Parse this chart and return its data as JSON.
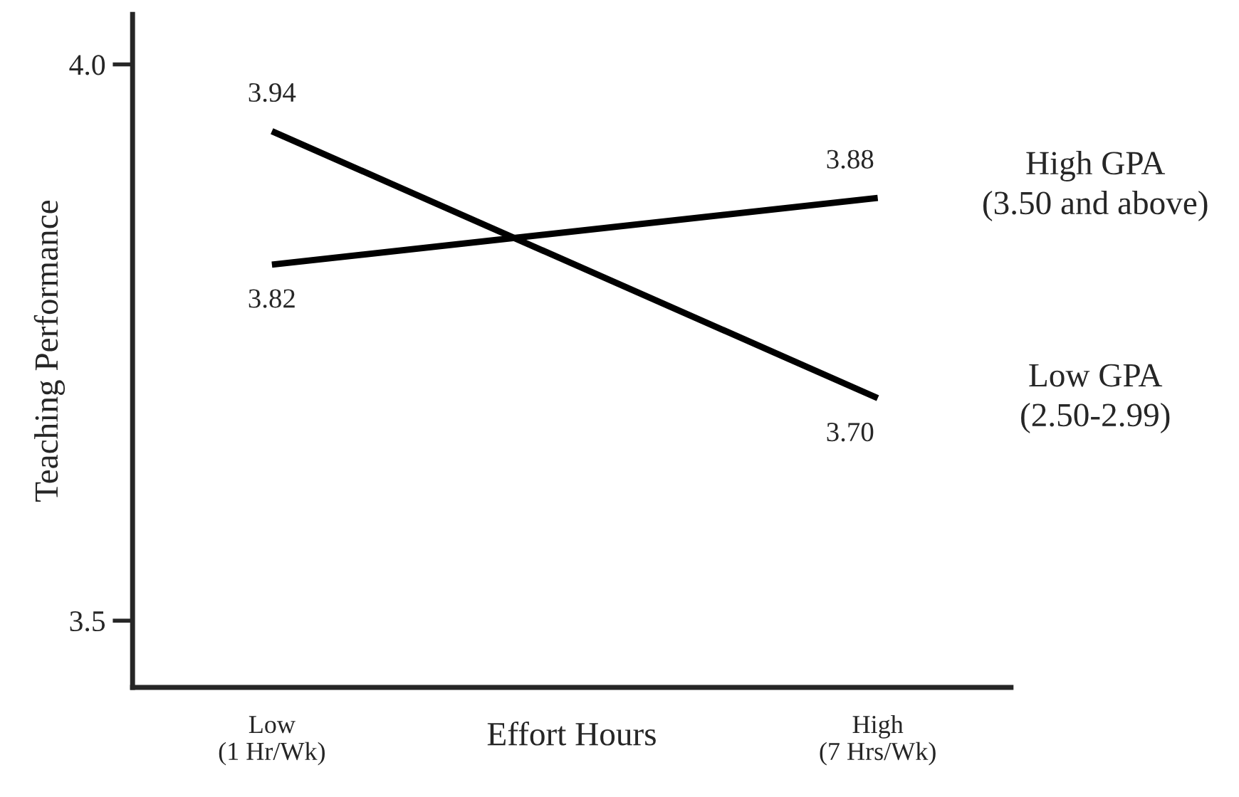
{
  "chart_data": {
    "type": "line",
    "xlabel": "Effort Hours",
    "ylabel": "Teaching Performance",
    "categories": [
      "Low\n(1 Hr/Wk)",
      "High\n(7 Hrs/Wk)"
    ],
    "series": [
      {
        "name": "High GPA\n(3.50 and above)",
        "color": "#000000",
        "values": [
          3.82,
          3.88
        ],
        "value_labels": [
          "3.82",
          "3.88"
        ]
      },
      {
        "name": "Low GPA\n(2.50-2.99)",
        "color": "#000000",
        "values": [
          3.94,
          3.7
        ],
        "value_labels": [
          "3.94",
          "3.70"
        ]
      }
    ],
    "ylim": [
      3.44,
      4.045
    ],
    "yticks": [
      3.5,
      {
        "value": 4.0,
        "label": "4.0"
      }
    ],
    "grid": false,
    "legend": false,
    "marker": "none",
    "line_style": "solid"
  }
}
